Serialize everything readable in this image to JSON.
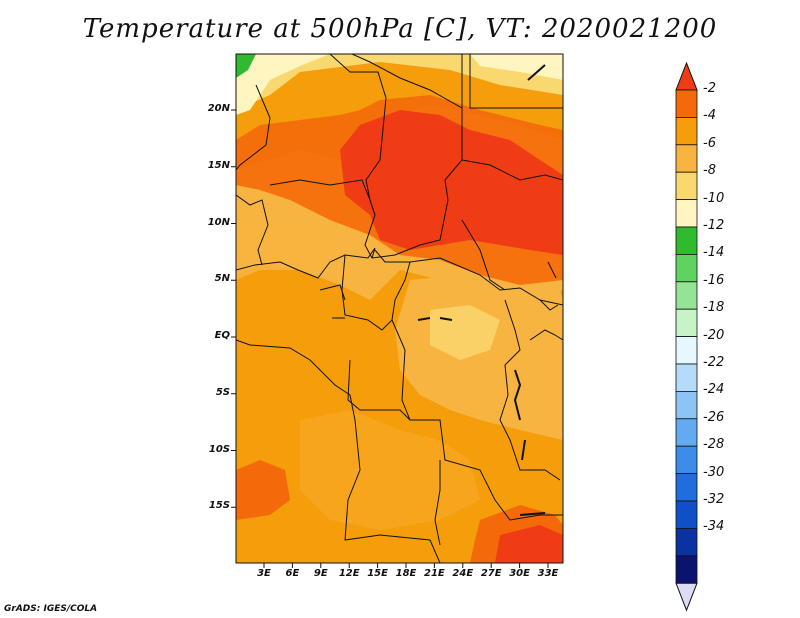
{
  "title": "Temperature at 500hPa [C], VT: 2020021200",
  "map": {
    "lat_labels": [
      "20N",
      "15N",
      "10N",
      "5N",
      "EQ",
      "5S",
      "10S",
      "15S"
    ],
    "lon_labels": [
      "3E",
      "6E",
      "9E",
      "12E",
      "15E",
      "18E",
      "21E",
      "24E",
      "27E",
      "30E",
      "33E"
    ],
    "lat_range": [
      -20,
      24
    ],
    "lon_range": [
      0,
      35
    ],
    "variable": "Temperature at 500hPa",
    "units": "C"
  },
  "colorbar": {
    "labels": [
      "-2",
      "-4",
      "-6",
      "-8",
      "-10",
      "-12",
      "-14",
      "-16",
      "-18",
      "-20",
      "-22",
      "-24",
      "-26",
      "-28",
      "-30",
      "-32",
      "-34"
    ],
    "colors": [
      "#f03c14",
      "#f46a0a",
      "#f59d0a",
      "#f8b440",
      "#fad870",
      "#fef5c0",
      "#2fba2f",
      "#5fd35f",
      "#95e495",
      "#c6f4c6",
      "#e6f8ff",
      "#b4dcfa",
      "#8cc4f4",
      "#64aaf0",
      "#3c8ceb",
      "#1e6edc",
      "#0f50c8",
      "#0a32a0",
      "#0a146e",
      "#dcdcf5"
    ]
  },
  "credit": "GrADS: IGES/COLA"
}
